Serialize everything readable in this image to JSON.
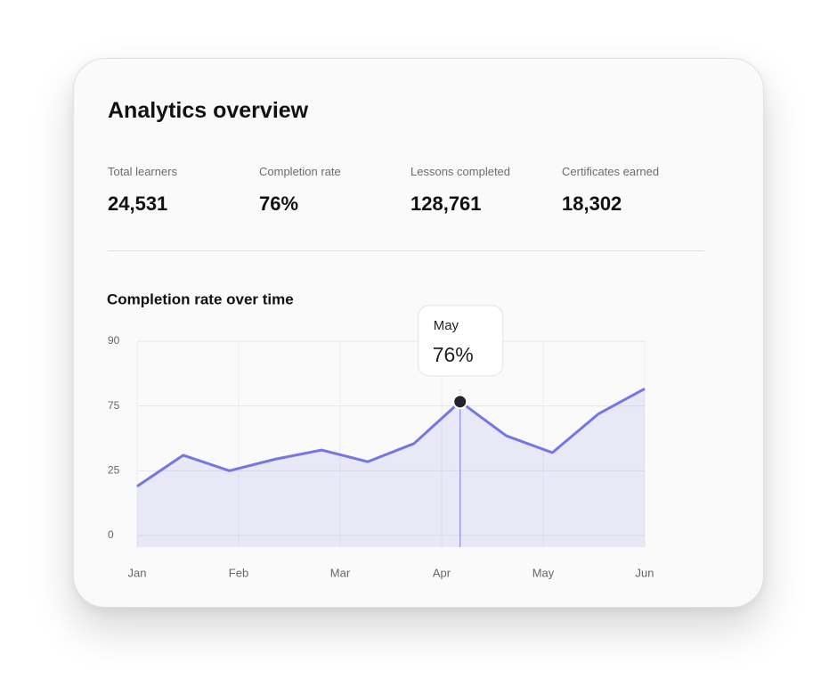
{
  "header": {
    "title": "Analytics overview"
  },
  "stats": [
    {
      "label": "Total learners",
      "value": "24,531"
    },
    {
      "label": "Completion rate",
      "value": "76%"
    },
    {
      "label": "Lessons completed",
      "value": "128,761"
    },
    {
      "label": "Certificates earned",
      "value": "18,302"
    }
  ],
  "chart_data": {
    "type": "line",
    "title": "Completion rate over time",
    "x": [
      0,
      1,
      2,
      3,
      4,
      5,
      6,
      7,
      8,
      9,
      10,
      11
    ],
    "xlim": [
      0,
      11
    ],
    "xticks": [
      {
        "value": 0,
        "label": "Jan"
      },
      {
        "value": 2.2,
        "label": "Feb"
      },
      {
        "value": 4.4,
        "label": "Mar"
      },
      {
        "value": 6.6,
        "label": "Apr"
      },
      {
        "value": 8.8,
        "label": "May"
      },
      {
        "value": 11,
        "label": "Jun"
      }
    ],
    "series": [
      {
        "name": "Completion rate",
        "color": "#7476e8",
        "values": [
          19,
          37,
          25,
          34,
          41,
          32,
          46,
          76,
          52,
          39,
          69,
          79
        ],
        "value_labels": [
          null,
          null,
          null,
          null,
          null,
          null,
          null,
          "76%",
          null,
          null,
          null,
          null
        ]
      }
    ],
    "tooltip_title": "May",
    "ylim": [
      0,
      90
    ],
    "yticks": [
      0,
      25,
      75,
      90
    ],
    "grid": true
  }
}
